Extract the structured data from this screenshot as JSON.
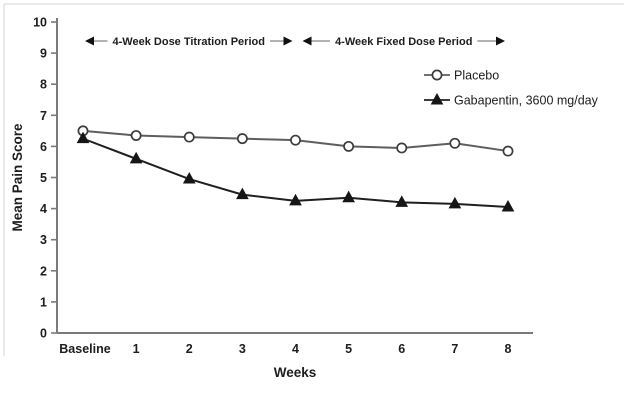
{
  "figure": {
    "description": "Weekly mean pain score line chart comparing Placebo vs Gabapentin",
    "background": "#ffffff",
    "frame_border_color": "#e3e3e3"
  },
  "chart_data": {
    "type": "line",
    "title": "",
    "xlabel": "Weeks",
    "ylabel": "Mean Pain Score",
    "ylim": [
      0,
      10
    ],
    "yticks": [
      0,
      1,
      2,
      3,
      4,
      5,
      6,
      7,
      8,
      9,
      10
    ],
    "categories": [
      "Baseline",
      "1",
      "2",
      "3",
      "4",
      "5",
      "6",
      "7",
      "8"
    ],
    "series": [
      {
        "name": "Placebo",
        "marker": "circle",
        "line_color": "#5e5e5e",
        "marker_fill": "#ffffff",
        "marker_stroke": "#3c3c3c",
        "values": [
          6.5,
          6.35,
          6.3,
          6.25,
          6.2,
          6.0,
          5.95,
          6.1,
          5.85
        ]
      },
      {
        "name": "Gabapentin, 3600 mg/day",
        "marker": "triangle",
        "line_color": "#1f1f1f",
        "marker_fill": "#161616",
        "marker_stroke": "#161616",
        "values": [
          6.25,
          5.6,
          4.95,
          4.45,
          4.25,
          4.35,
          4.2,
          4.15,
          4.05
        ]
      }
    ],
    "annotations": [
      {
        "label": "4-Week Dose Titration Period",
        "from_category": 0,
        "to_category": 4
      },
      {
        "label": "4-Week Fixed Dose Period",
        "from_category": 4,
        "to_category": 8
      }
    ],
    "legend_position": "upper-right",
    "grid": false,
    "colors": {
      "axis": "#7a7a7a",
      "tick": "#7a7a7a",
      "text": "#1d1d1f",
      "annotation_shaft": "#9a9a9a",
      "arrowhead": "#111111",
      "background": "#ffffff"
    }
  }
}
